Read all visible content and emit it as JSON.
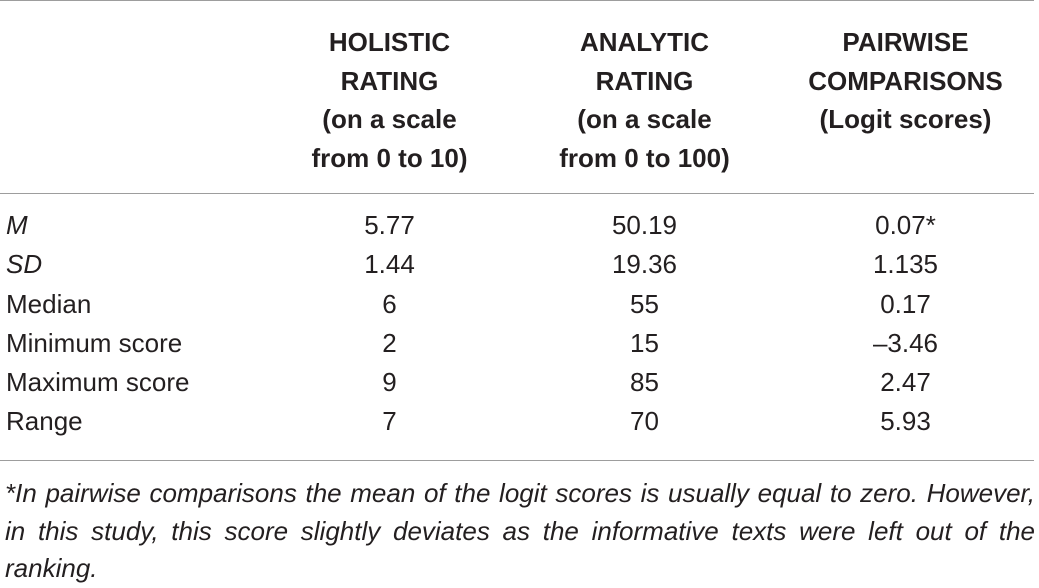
{
  "table": {
    "headers": [
      {
        "lines": [
          ""
        ]
      },
      {
        "lines": [
          "HOLISTIC",
          "RATING",
          "(on a scale",
          "from 0 to 10)"
        ]
      },
      {
        "lines": [
          "ANALYTIC",
          "RATING",
          "(on a scale",
          "from 0 to 100)"
        ]
      },
      {
        "lines": [
          "PAIRWISE",
          "COMPARISONS",
          "(Logit scores)"
        ]
      }
    ],
    "rows": [
      {
        "label": "M",
        "italic": true,
        "values": [
          "5.77",
          "50.19",
          "0.07*"
        ]
      },
      {
        "label": "SD",
        "italic": true,
        "values": [
          "1.44",
          "19.36",
          "1.135"
        ]
      },
      {
        "label": "Median",
        "italic": false,
        "values": [
          "6",
          "55",
          "0.17"
        ]
      },
      {
        "label": "Minimum score",
        "italic": false,
        "values": [
          "2",
          "15",
          "–3.46"
        ]
      },
      {
        "label": "Maximum score",
        "italic": false,
        "values": [
          "9",
          "85",
          "2.47"
        ]
      },
      {
        "label": "Range",
        "italic": false,
        "values": [
          "7",
          "70",
          "5.93"
        ]
      }
    ]
  },
  "footnote": "*In pairwise comparisons the mean of the logit scores is usually equal to zero. However, in this study, this score slightly deviates as the informative texts were left out of the ranking.",
  "colors": {
    "text": "#231f20",
    "rule": "#9d9d9d",
    "background": "#ffffff"
  }
}
